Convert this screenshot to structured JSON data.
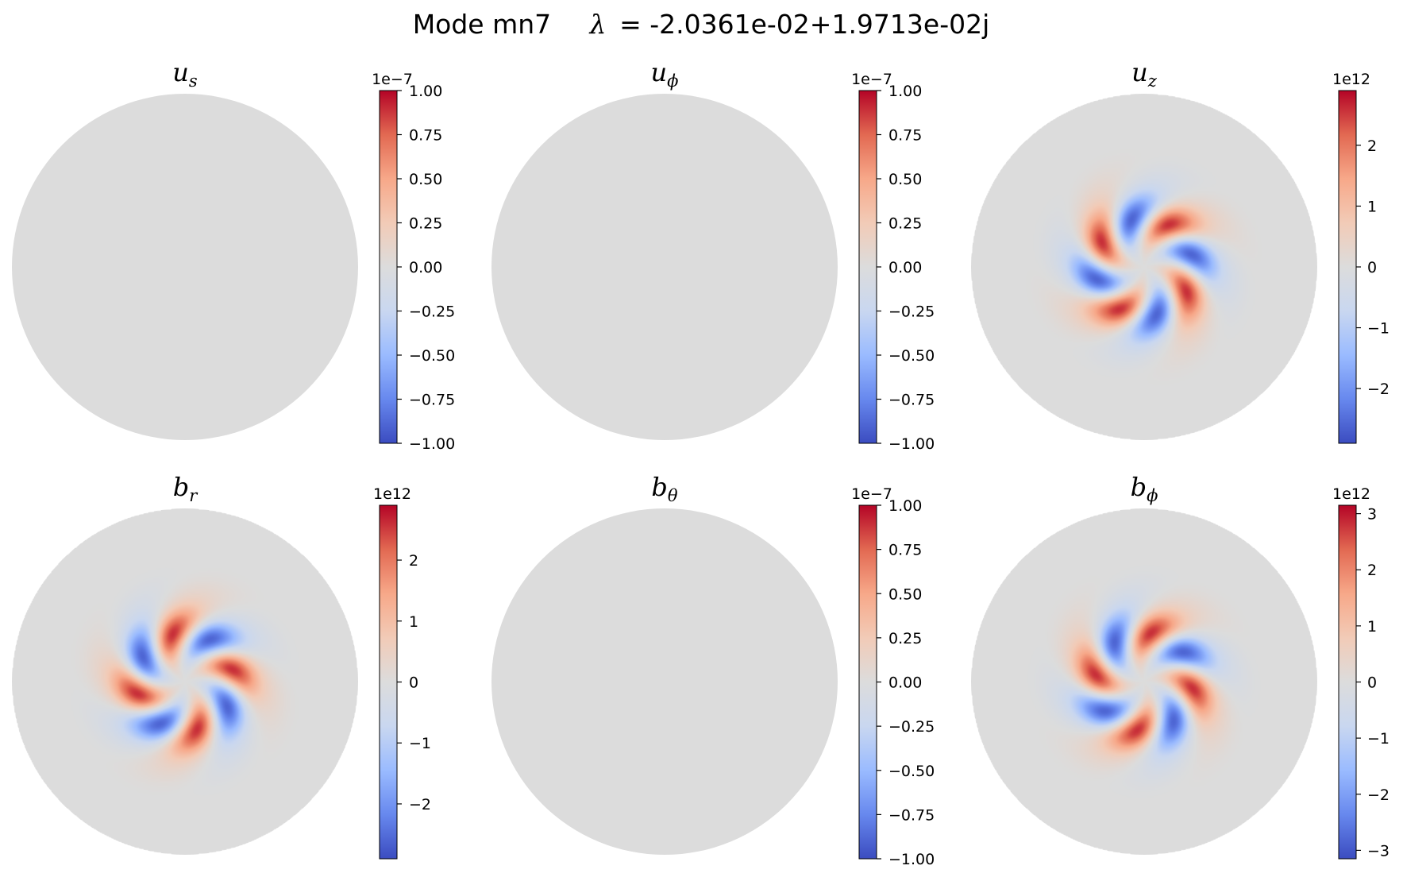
{
  "figure": {
    "title_prefix": "Mode mn7",
    "lambda_symbol": "λ",
    "lambda_value": "= -2.0361e-02+1.9713e-02j"
  },
  "colormap": {
    "name": "coolwarm",
    "stops": [
      "#3b4cc0",
      "#6788ee",
      "#9abbff",
      "#c9d7f0",
      "#dcdcdc",
      "#f2cbb7",
      "#f7a889",
      "#e26952",
      "#b40426"
    ],
    "neutral": "#dcdcdc"
  },
  "chart_data": [
    {
      "type": "heatmap",
      "title_base": "u",
      "title_sub": "s",
      "colorbar": {
        "vmin": -1.0,
        "vmax": 1.0,
        "offset": "1e−7",
        "ticks": [
          1.0,
          0.75,
          0.5,
          0.25,
          0.0,
          -0.25,
          -0.5,
          -0.75,
          -1.0
        ],
        "tick_labels": [
          "1.00",
          "0.75",
          "0.50",
          "0.25",
          "0.00",
          "−0.25",
          "−0.50",
          "−0.75",
          "−1.00"
        ]
      },
      "pattern": "uniform"
    },
    {
      "type": "heatmap",
      "title_base": "u",
      "title_sub": "ϕ",
      "colorbar": {
        "vmin": -1.0,
        "vmax": 1.0,
        "offset": "1e−7",
        "ticks": [
          1.0,
          0.75,
          0.5,
          0.25,
          0.0,
          -0.25,
          -0.5,
          -0.75,
          -1.0
        ],
        "tick_labels": [
          "1.00",
          "0.75",
          "0.50",
          "0.25",
          "0.00",
          "−0.25",
          "−0.50",
          "−0.75",
          "−1.00"
        ]
      },
      "pattern": "uniform"
    },
    {
      "type": "heatmap",
      "title_base": "u",
      "title_sub": "z",
      "colorbar": {
        "vmin": -2.9,
        "vmax": 2.9,
        "offset": "1e12",
        "ticks": [
          2,
          1,
          0,
          -1,
          -2
        ],
        "tick_labels": [
          "2",
          "1",
          "0",
          "−1",
          "−2"
        ]
      },
      "pattern": "spiral",
      "arms": 4,
      "phase": 0.0
    },
    {
      "type": "heatmap",
      "title_base": "b",
      "title_sub": "r",
      "colorbar": {
        "vmin": -2.9,
        "vmax": 2.9,
        "offset": "1e12",
        "ticks": [
          2,
          1,
          0,
          -1,
          -2
        ],
        "tick_labels": [
          "2",
          "1",
          "0",
          "−1",
          "−2"
        ]
      },
      "pattern": "spiral",
      "arms": 4,
      "phase": 0.78
    },
    {
      "type": "heatmap",
      "title_base": "b",
      "title_sub": "θ",
      "colorbar": {
        "vmin": -1.0,
        "vmax": 1.0,
        "offset": "1e−7",
        "ticks": [
          1.0,
          0.75,
          0.5,
          0.25,
          0.0,
          -0.25,
          -0.5,
          -0.75,
          -1.0
        ],
        "tick_labels": [
          "1.00",
          "0.75",
          "0.50",
          "0.25",
          "0.00",
          "−0.25",
          "−0.50",
          "−0.75",
          "−1.00"
        ]
      },
      "pattern": "uniform"
    },
    {
      "type": "heatmap",
      "title_base": "b",
      "title_sub": "ϕ",
      "colorbar": {
        "vmin": -3.15,
        "vmax": 3.15,
        "offset": "1e12",
        "ticks": [
          3,
          2,
          1,
          0,
          -1,
          -2,
          -3
        ],
        "tick_labels": [
          "3",
          "2",
          "1",
          "0",
          "−1",
          "−2",
          "−3"
        ]
      },
      "pattern": "spiral",
      "arms": 4,
      "phase": 0.39
    }
  ]
}
